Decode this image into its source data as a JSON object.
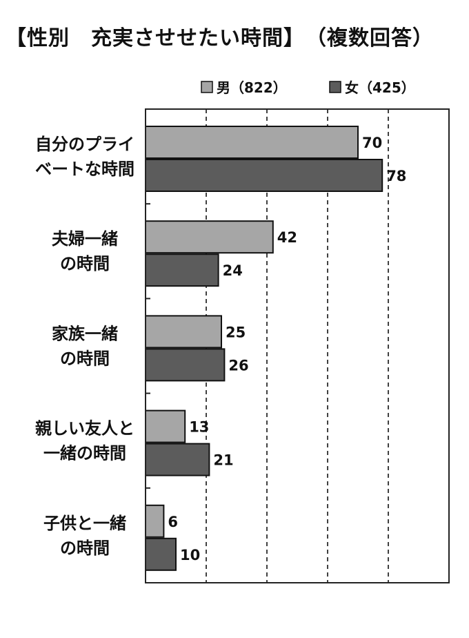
{
  "title": "【性別　充実させせたい時間】　（複数回答）",
  "chart_data": {
    "type": "bar",
    "orientation": "horizontal",
    "categories": [
      [
        "自分のプライ",
        "ベートな時間"
      ],
      [
        "夫婦一緒",
        "の時間"
      ],
      [
        "家族一緒",
        "の時間"
      ],
      [
        "親しい友人と",
        "一緒の時間"
      ],
      [
        "子供と一緒",
        "の時間"
      ]
    ],
    "series": [
      {
        "name": "男（822）",
        "values": [
          70,
          42,
          25,
          13,
          6
        ],
        "color": "#a6a6a6"
      },
      {
        "name": "女（425）",
        "values": [
          78,
          24,
          26,
          21,
          10
        ],
        "color": "#5c5c5c"
      }
    ],
    "xlim": [
      0,
      100
    ],
    "grid": "vertical dashed",
    "legend_position": "top"
  }
}
